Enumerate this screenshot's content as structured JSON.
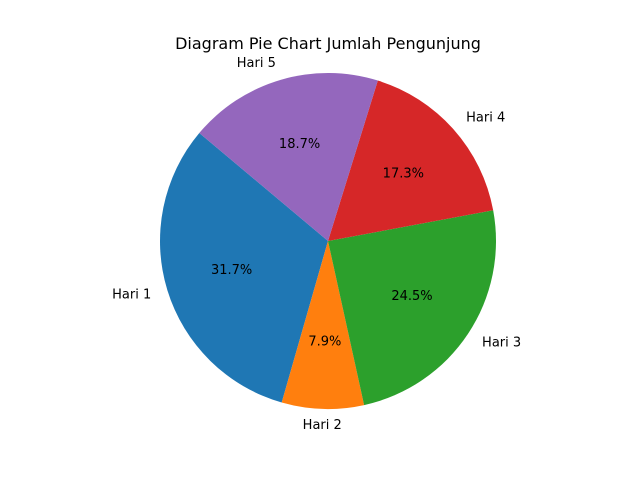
{
  "chart_data": {
    "type": "pie",
    "title": "Diagram Pie Chart Jumlah Pengunjung",
    "categories": [
      "Hari 1",
      "Hari 2",
      "Hari 3",
      "Hari 4",
      "Hari 5"
    ],
    "values": [
      31.7,
      7.9,
      24.5,
      17.3,
      18.7
    ],
    "percent_labels": [
      "31.7%",
      "7.9%",
      "24.5%",
      "17.3%",
      "18.7%"
    ],
    "colors": [
      "#1f77b4",
      "#ff7f0e",
      "#2ca02c",
      "#d62728",
      "#9467bd"
    ],
    "start_angle_deg": 140,
    "direction": "counterclockwise",
    "legend": "none"
  }
}
